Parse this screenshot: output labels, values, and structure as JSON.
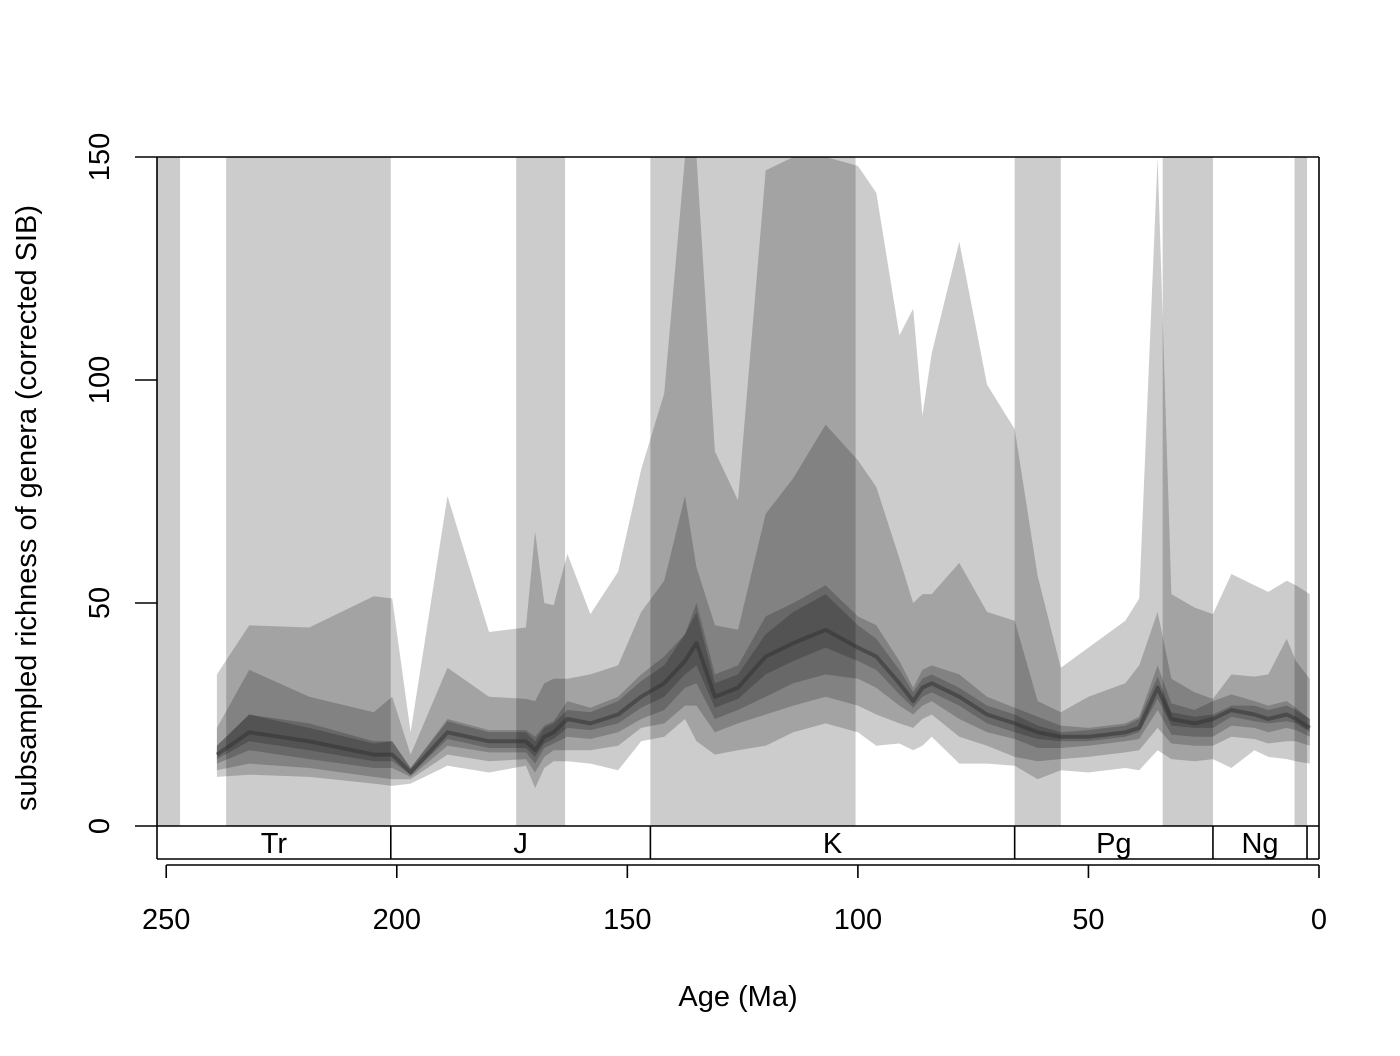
{
  "chart_data": {
    "type": "area",
    "title": "",
    "xlabel": "Age (Ma)",
    "ylabel": "subsampled richness of genera (corrected SIB)",
    "xlim": [
      252,
      0
    ],
    "ylim": [
      0,
      150
    ],
    "x_reversed": true,
    "x_ticks": [
      250,
      200,
      150,
      100,
      50,
      0
    ],
    "y_ticks": [
      0,
      50,
      100,
      150
    ],
    "grid": false,
    "legend": "none",
    "highlight_intervals": [
      [
        252,
        247
      ],
      [
        237,
        201.3
      ],
      [
        174.1,
        163.5
      ],
      [
        145,
        100.5
      ],
      [
        66,
        56
      ],
      [
        33.9,
        23
      ],
      [
        5.3,
        2.6
      ]
    ],
    "periods": [
      {
        "label": "Tr",
        "start": 252,
        "end": 201.3
      },
      {
        "label": "J",
        "start": 201.3,
        "end": 145
      },
      {
        "label": "K",
        "start": 145,
        "end": 66
      },
      {
        "label": "Pg",
        "start": 66,
        "end": 23
      },
      {
        "label": "Ng",
        "start": 23,
        "end": 2.6
      },
      {
        "label": "",
        "start": 2.6,
        "end": 0
      }
    ],
    "colors": {
      "interval_shade": "#cccccc",
      "band": "#000000",
      "axis": "#000000",
      "background": "#ffffff"
    },
    "x": [
      239,
      232,
      219,
      205,
      201,
      197,
      189,
      180,
      172,
      170,
      168,
      166,
      163,
      158,
      152,
      147,
      142,
      137.5,
      135,
      131,
      126,
      120,
      114,
      107,
      100,
      96,
      91,
      88,
      86,
      84,
      78,
      72,
      66,
      61,
      56,
      50,
      42,
      39,
      35,
      32,
      27,
      23,
      19,
      14,
      11,
      7,
      5,
      2
    ],
    "median": [
      16,
      21,
      19,
      16,
      16,
      12,
      21,
      19,
      19,
      17,
      20,
      21,
      24,
      23,
      25,
      29,
      32,
      37,
      41,
      29,
      31,
      38,
      41,
      44,
      40,
      38,
      32,
      28,
      31,
      32,
      29,
      25,
      23,
      21,
      20,
      20,
      21,
      22,
      31,
      24,
      23,
      24,
      26,
      25,
      24,
      25,
      24,
      22
    ],
    "series": [
      {
        "name": "",
        "lower": [
          11,
          11.5,
          11,
          9.5,
          9,
          9.5,
          13.5,
          12,
          13.5,
          8.5,
          13,
          14.5,
          14.5,
          14,
          12.5,
          19,
          20,
          24,
          19,
          16,
          17,
          18,
          21,
          23,
          21,
          18,
          18.5,
          17,
          18,
          20,
          14,
          14,
          13.5,
          10.5,
          12.5,
          12,
          13,
          12.5,
          17,
          15,
          14.5,
          15,
          13,
          17,
          15.5,
          15,
          14.5,
          14
        ],
        "upper": [
          34,
          45,
          44.5,
          51.5,
          51,
          21,
          74,
          43.5,
          44.5,
          66,
          50,
          49.5,
          61,
          47.5,
          57,
          80,
          97,
          152,
          152,
          84,
          73,
          147,
          152,
          152,
          148,
          142,
          110,
          116,
          92,
          106,
          131,
          99,
          89,
          56,
          35.5,
          40,
          46,
          51,
          152,
          52,
          49,
          47.5,
          56.5,
          54,
          52.5,
          55,
          54,
          52
        ]
      },
      {
        "name": "",
        "lower": [
          12.5,
          14,
          13,
          11,
          10.5,
          10.5,
          16,
          14.5,
          15,
          12,
          15.5,
          17,
          17,
          17,
          18,
          22,
          23,
          27,
          27,
          21,
          23,
          25,
          27,
          29,
          27,
          25,
          23,
          22,
          24,
          25,
          20,
          18,
          15.5,
          14.5,
          15,
          15.5,
          16.5,
          17,
          22,
          18.5,
          18,
          18,
          20,
          19.5,
          18.5,
          19,
          19,
          18
        ],
        "upper": [
          22,
          35,
          29,
          25.5,
          29,
          16,
          35.5,
          29,
          28.5,
          28,
          32,
          33,
          33,
          34,
          36,
          48,
          55,
          74,
          58,
          45,
          44,
          70,
          78,
          90,
          82,
          76,
          60,
          50,
          52,
          52,
          59,
          48,
          46,
          28,
          25.5,
          29,
          32,
          36,
          48,
          33,
          30,
          28.5,
          34,
          33.5,
          34,
          42,
          37,
          33
        ]
      },
      {
        "name": "",
        "lower": [
          14,
          17,
          15,
          13,
          13,
          11,
          18,
          16.5,
          16.5,
          14,
          17.5,
          18.5,
          20,
          19.5,
          21,
          24,
          26,
          31,
          32,
          24,
          26,
          29,
          32,
          34,
          33,
          31,
          27,
          25,
          27,
          28,
          24,
          21,
          19.5,
          17.5,
          17.5,
          18,
          19,
          19.5,
          26,
          20.5,
          20,
          20,
          22.5,
          22,
          21,
          22,
          21.5,
          20
        ]
      },
      {
        "name": "",
        "lower": [
          15,
          19,
          17,
          14.5,
          14.5,
          11.5,
          19.5,
          17.5,
          17.5,
          15.5,
          18.5,
          19.5,
          22,
          21.5,
          23,
          26.5,
          29,
          34,
          36,
          26.5,
          28.5,
          34,
          37,
          40,
          37,
          35,
          29.5,
          26.5,
          29,
          30,
          27,
          23,
          21,
          19.5,
          19,
          19,
          20,
          21,
          28.5,
          22.5,
          22,
          22,
          24.5,
          23.5,
          23,
          23.5,
          23,
          21
        ],
        "upper": [
          18,
          25,
          22,
          18.5,
          19,
          13,
          23.5,
          21,
          21,
          19,
          22,
          23,
          26,
          25.5,
          28,
          32.5,
          36,
          43,
          48,
          32,
          34,
          43,
          48,
          52,
          45,
          42,
          35,
          30,
          33,
          34,
          31,
          27,
          25,
          22.5,
          21,
          21.5,
          22.5,
          24,
          33.5,
          25.5,
          24.5,
          25,
          27,
          27,
          26,
          27,
          26,
          24
        ]
      }
    ]
  }
}
